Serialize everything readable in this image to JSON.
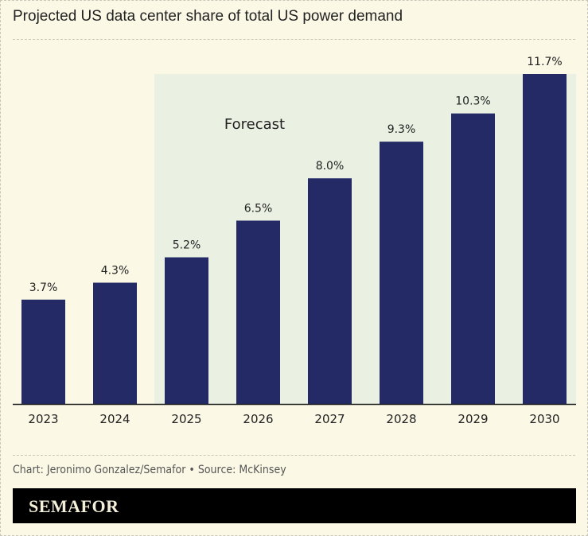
{
  "chart_data": {
    "type": "bar",
    "title": "Projected US data center share of total US power demand",
    "categories": [
      "2023",
      "2024",
      "2025",
      "2026",
      "2027",
      "2028",
      "2029",
      "2030"
    ],
    "values": [
      3.7,
      4.3,
      5.2,
      6.5,
      8.0,
      9.3,
      10.3,
      11.7
    ],
    "data_labels": [
      "3.7%",
      "4.3%",
      "5.2%",
      "6.5%",
      "8.0%",
      "9.3%",
      "10.3%",
      "11.7%"
    ],
    "ylim": [
      0,
      11.7
    ],
    "grid": false,
    "annotation": {
      "label": "Forecast",
      "start_category": "2025",
      "end_category": "2030",
      "color": "#eaf1e3"
    },
    "bar_color": "#232a66"
  },
  "credit": "Chart: Jeronimo Gonzalez/Semafor • Source: McKinsey",
  "brand": "SEMAFOR"
}
